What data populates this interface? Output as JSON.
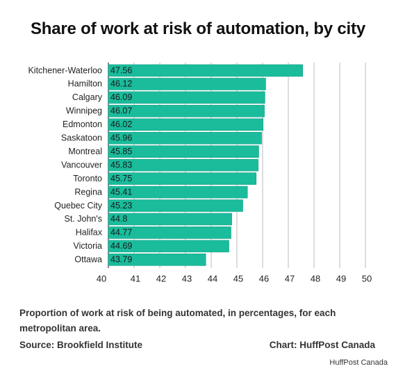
{
  "title": "Share of work at risk of automation, by city",
  "caption": "Proportion of work at risk of being automated, in percentages, for each metropolitan area.",
  "source": "Source: Brookfield Institute",
  "credit": "Chart: HuffPost Canada",
  "watermark": "HuffPost Canada",
  "colors": {
    "bar": "#1abc9c",
    "bar_edge": "#16a085",
    "grid": "#bbbbbb",
    "text": "#222222"
  },
  "chart_data": {
    "type": "bar",
    "orientation": "horizontal",
    "title": "Share of work at risk of automation, by city",
    "categories": [
      "Kitchener-Waterloo",
      "Hamilton",
      "Calgary",
      "Winnipeg",
      "Edmonton",
      "Saskatoon",
      "Montreal",
      "Vancouver",
      "Toronto",
      "Regina",
      "Quebec City",
      "St. John's",
      "Halifax",
      "Victoria",
      "Ottawa"
    ],
    "values": [
      47.56,
      46.12,
      46.09,
      46.07,
      46.02,
      45.96,
      45.85,
      45.83,
      45.75,
      45.41,
      45.23,
      44.8,
      44.77,
      44.69,
      43.79
    ],
    "data_labels": [
      "47.56",
      "46.12",
      "46.09",
      "46.07",
      "46.02",
      "45.96",
      "45.85",
      "45.83",
      "45.75",
      "45.41",
      "45.23",
      "44.8",
      "44.77",
      "44.69",
      "43.79"
    ],
    "xlim": [
      40,
      50
    ],
    "xticks": [
      "40",
      "41",
      "42",
      "43",
      "44",
      "45",
      "46",
      "47",
      "48",
      "49",
      "50"
    ],
    "xlabel": "",
    "ylabel": "",
    "grid": "vertical",
    "legend": "none"
  }
}
